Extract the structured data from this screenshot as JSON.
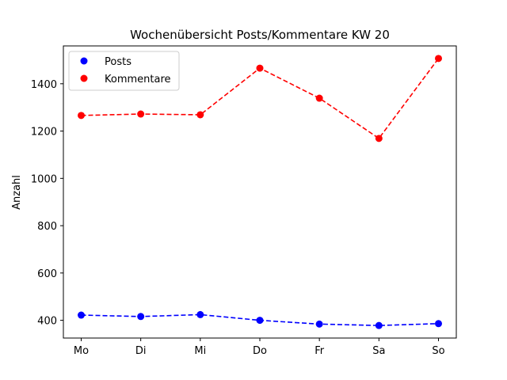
{
  "chart_data": {
    "type": "line",
    "title": "Wochenübersicht Posts/Kommentare KW 20",
    "xlabel": "",
    "ylabel": "Anzahl",
    "categories": [
      "Mo",
      "Di",
      "Mi",
      "Do",
      "Fr",
      "Sa",
      "So"
    ],
    "ylim": [
      325,
      1560
    ],
    "yticks": [
      400,
      600,
      800,
      1000,
      1200,
      1400
    ],
    "grid": false,
    "legend_position": "top-left",
    "series": [
      {
        "name": "Posts",
        "color": "#0000ff",
        "line_style": "dashed",
        "marker": "circle",
        "values": [
          422,
          416,
          424,
          400,
          384,
          378,
          386
        ]
      },
      {
        "name": "Kommentare",
        "color": "#ff0000",
        "line_style": "dashed",
        "marker": "circle",
        "values": [
          1266,
          1272,
          1269,
          1466,
          1339,
          1169,
          1507
        ]
      }
    ]
  }
}
